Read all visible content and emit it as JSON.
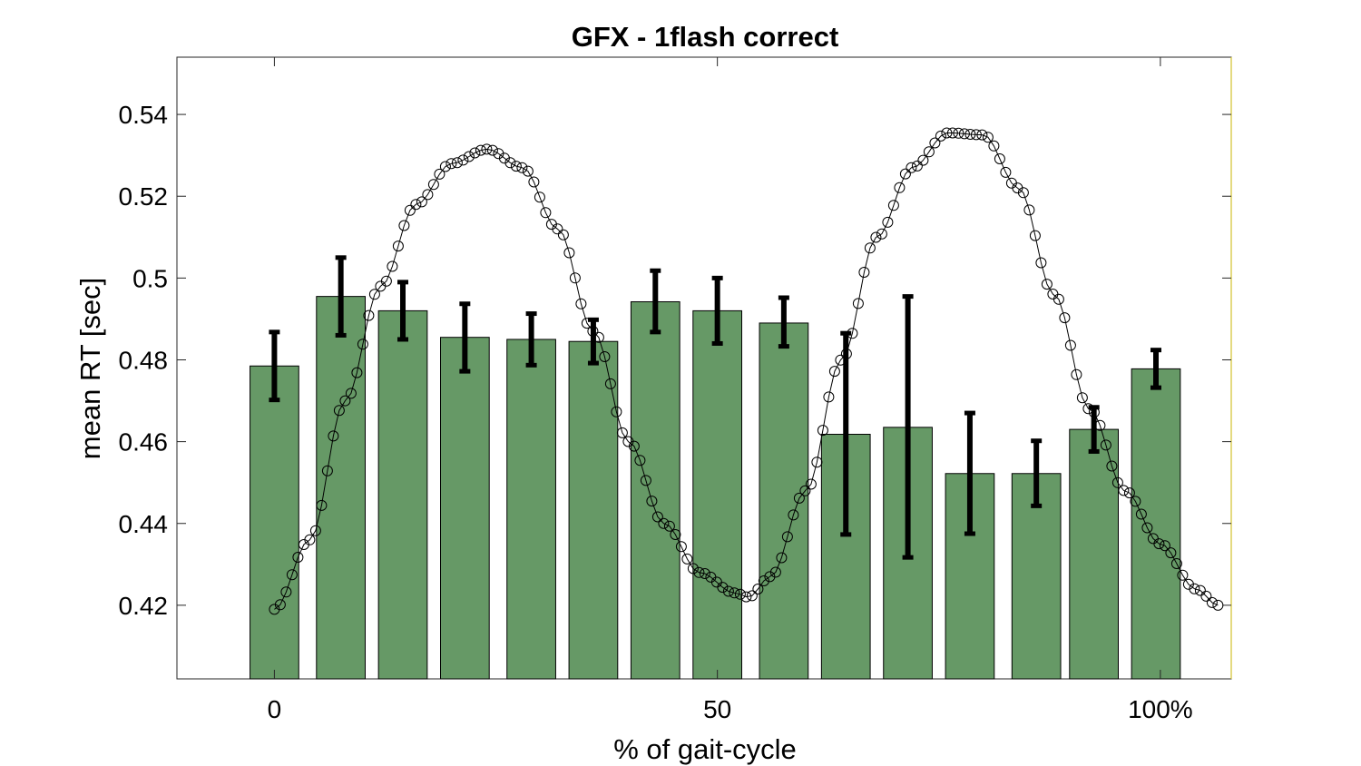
{
  "chart_data": {
    "type": "bar",
    "title": "GFX - 1flash correct",
    "xlabel": "% of gait-cycle",
    "ylabel": "mean RT [sec]",
    "xlim": [
      -11,
      108
    ],
    "ylim": [
      0.402,
      0.554
    ],
    "x_ticks": [
      {
        "value": 0,
        "label": "0"
      },
      {
        "value": 50,
        "label": "50"
      },
      {
        "value": 100,
        "label": "100%"
      }
    ],
    "y_ticks": [
      {
        "value": 0.42,
        "label": "0.42"
      },
      {
        "value": 0.44,
        "label": "0.44"
      },
      {
        "value": 0.46,
        "label": "0.46"
      },
      {
        "value": 0.48,
        "label": "0.48"
      },
      {
        "value": 0.5,
        "label": "0.5"
      },
      {
        "value": 0.52,
        "label": "0.52"
      },
      {
        "value": 0.54,
        "label": "0.54"
      }
    ],
    "bar_color": "#669966",
    "bars": [
      {
        "x": 0,
        "width": 5.5,
        "value": 0.4785,
        "err_low": 0.4702,
        "err_high": 0.4868
      },
      {
        "x": 7.5,
        "width": 5.5,
        "value": 0.4955,
        "err_low": 0.486,
        "err_high": 0.505
      },
      {
        "x": 14.5,
        "width": 5.5,
        "value": 0.492,
        "err_low": 0.485,
        "err_high": 0.499
      },
      {
        "x": 21.5,
        "width": 5.5,
        "value": 0.4855,
        "err_low": 0.4772,
        "err_high": 0.4937
      },
      {
        "x": 29,
        "width": 5.5,
        "value": 0.485,
        "err_low": 0.4787,
        "err_high": 0.4913
      },
      {
        "x": 36,
        "width": 5.5,
        "value": 0.4845,
        "err_low": 0.4792,
        "err_high": 0.4898
      },
      {
        "x": 43,
        "width": 5.5,
        "value": 0.4942,
        "err_low": 0.4868,
        "err_high": 0.5018
      },
      {
        "x": 50,
        "width": 5.5,
        "value": 0.492,
        "err_low": 0.484,
        "err_high": 0.5
      },
      {
        "x": 57.5,
        "width": 5.5,
        "value": 0.489,
        "err_low": 0.4833,
        "err_high": 0.4952
      },
      {
        "x": 64.5,
        "width": 5.5,
        "value": 0.4618,
        "err_low": 0.4373,
        "err_high": 0.4865
      },
      {
        "x": 71.5,
        "width": 5.5,
        "value": 0.4635,
        "err_low": 0.4317,
        "err_high": 0.4955
      },
      {
        "x": 78.5,
        "width": 5.5,
        "value": 0.4522,
        "err_low": 0.4375,
        "err_high": 0.467
      },
      {
        "x": 86,
        "width": 5.5,
        "value": 0.4522,
        "err_low": 0.4443,
        "err_high": 0.4602
      },
      {
        "x": 92.5,
        "width": 5.5,
        "value": 0.463,
        "err_low": 0.4576,
        "err_high": 0.4684
      },
      {
        "x": 99.5,
        "width": 5.5,
        "value": 0.4778,
        "err_low": 0.4732,
        "err_high": 0.4824
      }
    ],
    "overlay_curve": {
      "type": "line",
      "marker": "circle",
      "x": [
        0,
        4,
        8,
        12,
        16,
        20,
        24,
        28,
        32,
        36,
        40,
        44,
        48,
        52,
        53.5,
        56,
        60,
        64,
        68,
        72,
        76,
        80,
        84,
        88,
        92,
        96,
        100,
        104,
        106.5
      ],
      "y": [
        0.419,
        0.436,
        0.47,
        0.498,
        0.518,
        0.528,
        0.5315,
        0.527,
        0.512,
        0.487,
        0.46,
        0.44,
        0.428,
        0.423,
        0.422,
        0.427,
        0.448,
        0.48,
        0.51,
        0.527,
        0.5355,
        0.535,
        0.522,
        0.496,
        0.468,
        0.448,
        0.435,
        0.424,
        0.42
      ]
    }
  }
}
